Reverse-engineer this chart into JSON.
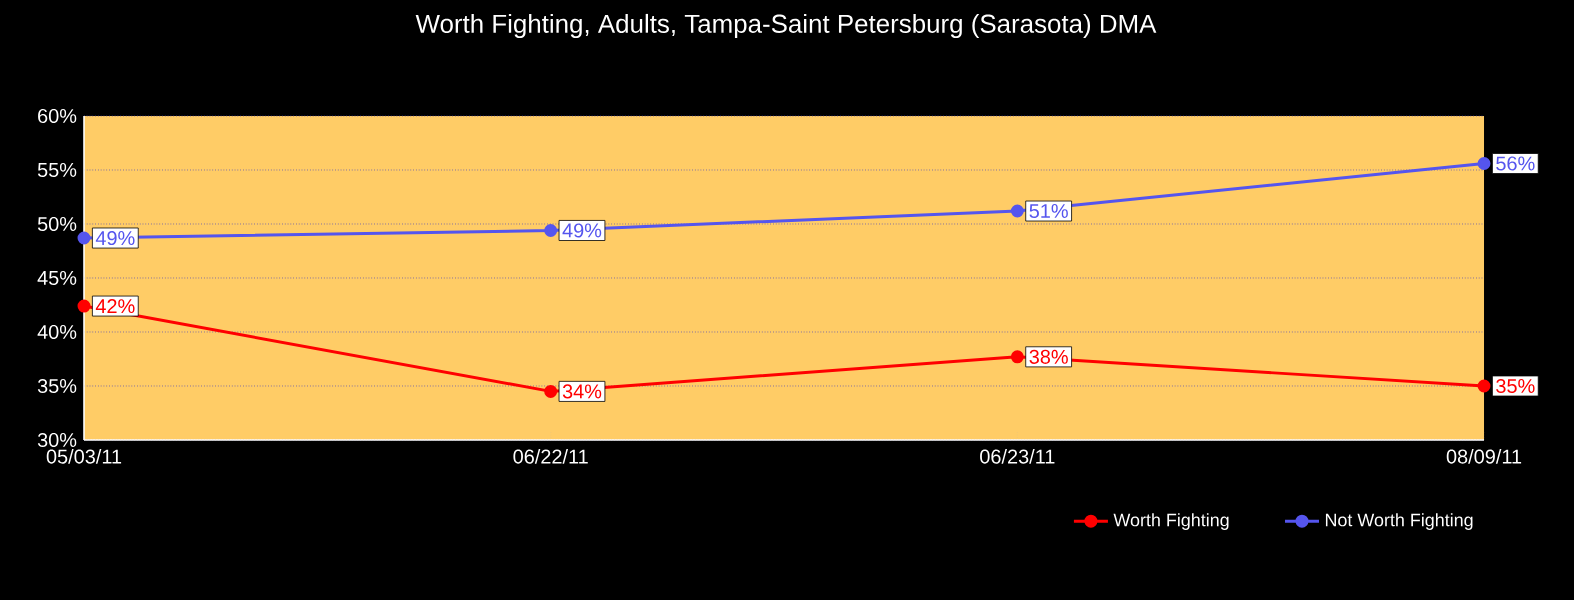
{
  "chart_data": {
    "type": "line",
    "title": "Worth Fighting, Adults, Tampa-Saint Petersburg (Sarasota) DMA",
    "categories": [
      "05/03/11",
      "06/22/11",
      "06/23/11",
      "08/09/11"
    ],
    "series": [
      {
        "name": "Worth Fighting",
        "color": "#ff0000",
        "values": [
          42.4,
          34.5,
          37.7,
          35.0
        ],
        "value_labels": [
          "42%",
          "34%",
          "38%",
          "35%"
        ]
      },
      {
        "name": "Not Worth Fighting",
        "color": "#5555ee",
        "values": [
          48.7,
          49.4,
          51.2,
          55.6
        ],
        "value_labels": [
          "49%",
          "49%",
          "51%",
          "56%"
        ]
      }
    ],
    "ylim": [
      30,
      60
    ],
    "yticks": [
      {
        "value": 30,
        "label": "30%"
      },
      {
        "value": 35,
        "label": "35%"
      },
      {
        "value": 40,
        "label": "40%"
      },
      {
        "value": 45,
        "label": "45%"
      },
      {
        "value": 50,
        "label": "50%"
      },
      {
        "value": 55,
        "label": "55%"
      },
      {
        "value": 60,
        "label": "60%"
      }
    ],
    "grid": "y",
    "legend": "bottom right",
    "marker": "circle",
    "line_style": "solid"
  }
}
